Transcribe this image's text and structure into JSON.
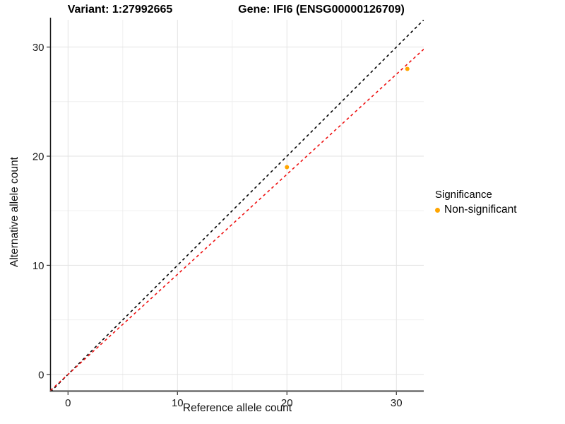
{
  "chart_data": {
    "type": "scatter",
    "title_variant": "Variant: 1:27992665",
    "title_gene": "Gene: IFI6 (ENSG00000126709)",
    "xlabel": "Reference allele count",
    "ylabel": "Alternative allele count",
    "xlim": [
      -1.6,
      32.5
    ],
    "ylim": [
      -1.5,
      32.5
    ],
    "x_major_ticks": [
      0,
      10,
      20,
      30
    ],
    "x_minor_ticks": [
      5,
      15,
      25
    ],
    "y_major_ticks": [
      0,
      10,
      20,
      30
    ],
    "y_minor_ticks": [
      5,
      15,
      25
    ],
    "grid": true,
    "series": [
      {
        "name": "Non-significant",
        "color": "#FFA500",
        "points": [
          [
            20,
            19
          ],
          [
            31,
            28
          ]
        ]
      }
    ],
    "lines": [
      {
        "name": "identity-line",
        "slope": 1,
        "intercept": 0,
        "color": "#000000",
        "dash": "4 4"
      },
      {
        "name": "fit-line",
        "slope": 0.917,
        "intercept": 0,
        "color": "#EE1111",
        "dash": "4 4"
      }
    ],
    "legend": {
      "title": "Significance",
      "position": "right",
      "items": [
        {
          "label": "Non-significant",
          "color": "#FFA500"
        }
      ]
    },
    "colors": {
      "grid_major": "#e3e3e3",
      "grid_minor": "#efefef",
      "axis_left": "#1a1a1a",
      "axis_bottom": "#6e6e6e",
      "tick_mark": "#333333",
      "tick_label": "#1a1a1a"
    }
  }
}
